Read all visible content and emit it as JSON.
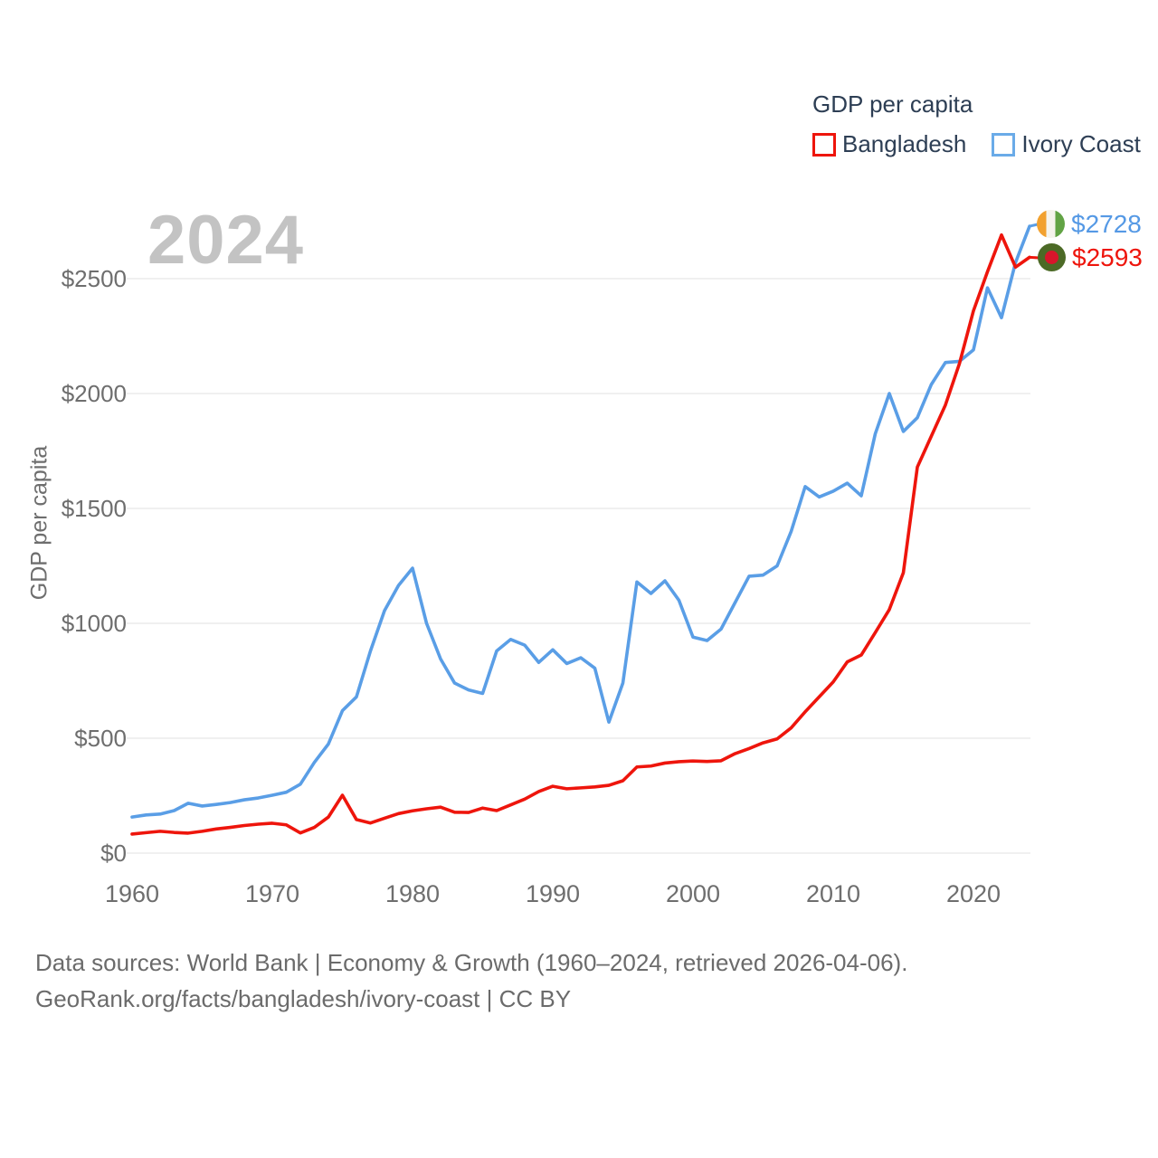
{
  "legend": {
    "title": "GDP per capita",
    "items": [
      {
        "label": "Bangladesh",
        "color": "#ee150c"
      },
      {
        "label": "Ivory Coast",
        "color": "#6aabe8"
      }
    ]
  },
  "watermark": "2024",
  "end_labels": {
    "ivory_coast": {
      "text": "$2728",
      "color": "#5599e5",
      "flag": "ivory-coast-flag"
    },
    "bangladesh": {
      "text": "$2593",
      "color": "#ee150c",
      "flag": "bangladesh-flag"
    }
  },
  "footer": {
    "line1": "Data sources: World Bank | Economy & Growth (1960–2024, retrieved 2026-04-06).",
    "line2": "GeoRank.org/facts/bangladesh/ivory-coast | CC BY"
  },
  "chart_data": {
    "type": "line",
    "title": "GDP per capita",
    "ylabel": "GDP per capita",
    "xlabel": "",
    "grid": true,
    "legend_position": "top-right",
    "ylim": [
      0,
      2800
    ],
    "yticks": [
      0,
      500,
      1000,
      1500,
      2000,
      2500
    ],
    "ytick_labels": [
      "$0",
      "$500",
      "$1000",
      "$1500",
      "$2000",
      "$2500"
    ],
    "xticks": [
      1960,
      1970,
      1980,
      1990,
      2000,
      2010,
      2020
    ],
    "x": [
      1960,
      1961,
      1962,
      1963,
      1964,
      1965,
      1966,
      1967,
      1968,
      1969,
      1970,
      1971,
      1972,
      1973,
      1974,
      1975,
      1976,
      1977,
      1978,
      1979,
      1980,
      1981,
      1982,
      1983,
      1984,
      1985,
      1986,
      1987,
      1988,
      1989,
      1990,
      1991,
      1992,
      1993,
      1994,
      1995,
      1996,
      1997,
      1998,
      1999,
      2000,
      2001,
      2002,
      2003,
      2004,
      2005,
      2006,
      2007,
      2008,
      2009,
      2010,
      2011,
      2012,
      2013,
      2014,
      2015,
      2016,
      2017,
      2018,
      2019,
      2020,
      2021,
      2022,
      2023,
      2024
    ],
    "series": [
      {
        "name": "Bangladesh",
        "color": "#ee150c",
        "end_value": 2593,
        "values": [
          83,
          89,
          95,
          90,
          87,
          95,
          105,
          112,
          120,
          126,
          130,
          123,
          88,
          112,
          157,
          252,
          146,
          131,
          152,
          172,
          184,
          193,
          200,
          178,
          177,
          196,
          185,
          210,
          235,
          268,
          291,
          280,
          284,
          288,
          295,
          315,
          375,
          379,
          392,
          398,
          401,
          399,
          402,
          433,
          455,
          480,
          497,
          545,
          615,
          680,
          745,
          832,
          862,
          960,
          1060,
          1220,
          1680,
          1815,
          1950,
          2130,
          2360,
          2530,
          2690,
          2550,
          2593
        ]
      },
      {
        "name": "Ivory Coast",
        "color": "#5a9ee6",
        "end_value": 2728,
        "values": [
          157,
          166,
          170,
          185,
          217,
          205,
          212,
          220,
          232,
          240,
          252,
          265,
          300,
          395,
          475,
          620,
          680,
          880,
          1055,
          1165,
          1240,
          1000,
          845,
          740,
          710,
          695,
          880,
          930,
          905,
          830,
          885,
          825,
          850,
          805,
          570,
          740,
          1180,
          1130,
          1185,
          1100,
          940,
          925,
          975,
          1090,
          1205,
          1210,
          1250,
          1400,
          1595,
          1550,
          1575,
          1610,
          1555,
          1825,
          2000,
          1835,
          1895,
          2040,
          2135,
          2140,
          2190,
          2460,
          2330,
          2570,
          2728
        ]
      }
    ]
  }
}
